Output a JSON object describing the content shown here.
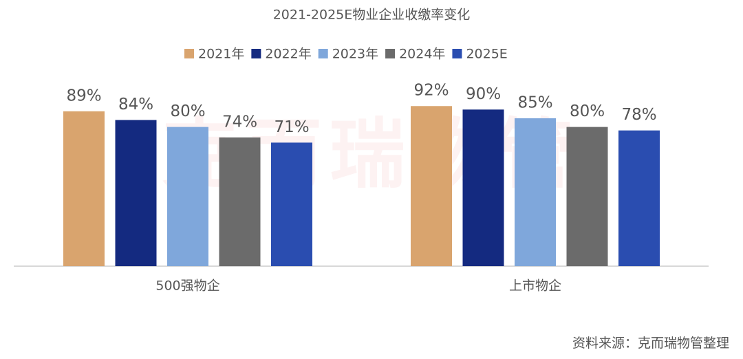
{
  "chart_data": {
    "type": "bar",
    "title": "2021-2025E物业企业收缴率变化",
    "categories": [
      "500强物企",
      "上市物企"
    ],
    "series": [
      {
        "name": "2021年",
        "color": "#d9a46e",
        "values": [
          89,
          92
        ],
        "value_labels": [
          "89%",
          "92%"
        ]
      },
      {
        "name": "2022年",
        "color": "#142a80",
        "values": [
          84,
          90
        ],
        "value_labels": [
          "84%",
          "90%"
        ]
      },
      {
        "name": "2023年",
        "color": "#7fa7db",
        "values": [
          80,
          85
        ],
        "value_labels": [
          "80%",
          "85%"
        ]
      },
      {
        "name": "2024年",
        "color": "#6b6b6b",
        "values": [
          74,
          80
        ],
        "value_labels": [
          "74%",
          "80%"
        ]
      },
      {
        "name": "2025E",
        "color": "#2a4db0",
        "values": [
          71,
          78
        ],
        "value_labels": [
          "71%",
          "78%"
        ]
      }
    ],
    "ylim": [
      0,
      100
    ],
    "legend": "top",
    "watermark": "克而瑞物管",
    "source": "资料来源：克而瑞物管整理"
  }
}
